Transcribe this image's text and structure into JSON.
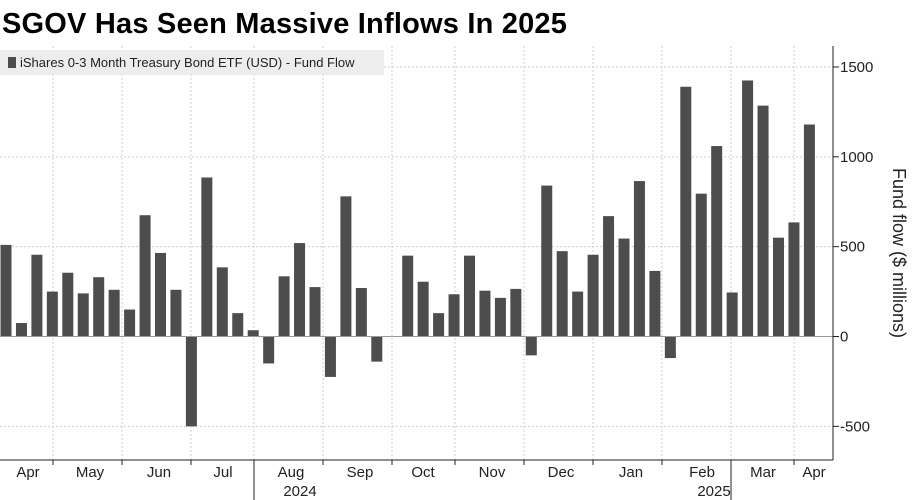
{
  "chart_data": {
    "type": "bar",
    "title": "SGOV Has Seen Massive Inflows In 2025",
    "series": [
      {
        "name": "iShares 0-3 Month Treasury Bond ETF (USD) - Fund Flow",
        "color": "#4d4d4d",
        "values": [
          510,
          75,
          455,
          250,
          355,
          240,
          330,
          260,
          150,
          675,
          465,
          260,
          -500,
          885,
          385,
          130,
          35,
          -150,
          335,
          520,
          275,
          -225,
          780,
          270,
          -140,
          0,
          450,
          305,
          130,
          235,
          450,
          255,
          215,
          265,
          -105,
          840,
          475,
          250,
          455,
          670,
          545,
          865,
          365,
          -120,
          1390,
          795,
          1060,
          245,
          1425,
          1285,
          550,
          635,
          1180
        ]
      }
    ],
    "ylabel": "Fund flow ($ millions)",
    "ylim": [
      -600,
      1620
    ],
    "yticks": [
      -500,
      0,
      500,
      1000,
      1500
    ],
    "xtick_labels": [
      "Apr",
      "May",
      "Jun",
      "Jul",
      "Aug",
      "Sep",
      "Oct",
      "Nov",
      "Dec",
      "Jan",
      "Feb",
      "Mar",
      "Apr"
    ],
    "year_labels": [
      "2024",
      "2025"
    ],
    "legend_position": "top-left",
    "grid": true
  }
}
